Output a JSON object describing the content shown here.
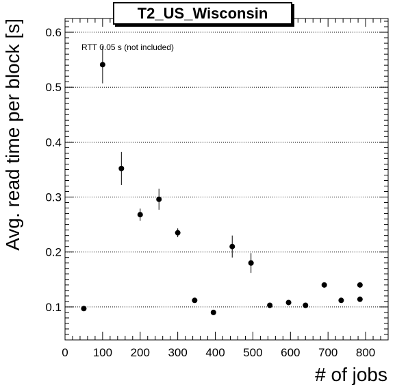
{
  "chart_data": {
    "type": "scatter",
    "title": "T2_US_Wisconsin",
    "xlabel": "# of jobs",
    "ylabel": "Avg. read time per block [s]",
    "annotation": "RTT 0.05 s (not included)",
    "xlim": [
      0,
      860
    ],
    "ylim": [
      0.04,
      0.625
    ],
    "x_ticks": [
      0,
      100,
      200,
      300,
      400,
      500,
      600,
      700,
      800
    ],
    "y_ticks": [
      0.1,
      0.2,
      0.3,
      0.4,
      0.5,
      0.6
    ],
    "grid": "horizontal dotted",
    "series": [
      {
        "points": [
          {
            "x": 50,
            "y": 0.097,
            "err": 0.003
          },
          {
            "x": 100,
            "y": 0.541,
            "err": 0.034
          },
          {
            "x": 150,
            "y": 0.352,
            "err": 0.03
          },
          {
            "x": 200,
            "y": 0.268,
            "err": 0.011
          },
          {
            "x": 250,
            "y": 0.296,
            "err": 0.019
          },
          {
            "x": 300,
            "y": 0.235,
            "err": 0.008
          },
          {
            "x": 345,
            "y": 0.112,
            "err": 0.004
          },
          {
            "x": 395,
            "y": 0.09,
            "err": 0.003
          },
          {
            "x": 445,
            "y": 0.21,
            "err": 0.02
          },
          {
            "x": 495,
            "y": 0.18,
            "err": 0.018
          },
          {
            "x": 545,
            "y": 0.103,
            "err": 0.003
          },
          {
            "x": 595,
            "y": 0.108,
            "err": 0.003
          },
          {
            "x": 640,
            "y": 0.103,
            "err": 0.003
          },
          {
            "x": 690,
            "y": 0.14,
            "err": 0.004
          },
          {
            "x": 735,
            "y": 0.112,
            "err": 0.003
          },
          {
            "x": 785,
            "y": 0.14,
            "err": 0.004
          },
          {
            "x": 785,
            "y": 0.114,
            "err": 0.003
          }
        ]
      }
    ]
  },
  "colors": {
    "marker": "#000000",
    "grid": "#000000",
    "background": "#ffffff"
  }
}
